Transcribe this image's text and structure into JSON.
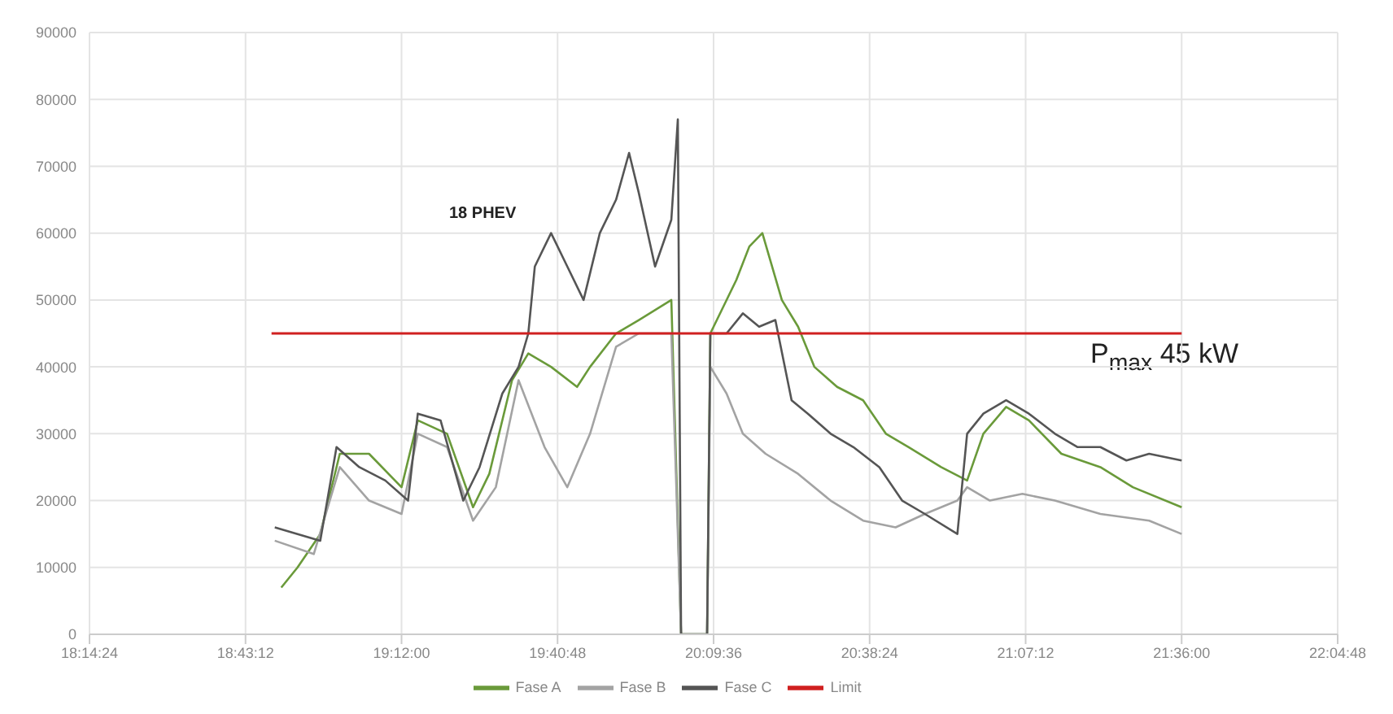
{
  "chart_data": {
    "type": "line",
    "xlim": [
      18.24,
      22.08
    ],
    "xticks": [
      {
        "value": 18.24,
        "label": "18:14:24"
      },
      {
        "value": 18.72,
        "label": "18:43:12"
      },
      {
        "value": 19.2,
        "label": "19:12:00"
      },
      {
        "value": 19.68,
        "label": "19:40:48"
      },
      {
        "value": 20.16,
        "label": "20:09:36"
      },
      {
        "value": 20.64,
        "label": "20:38:24"
      },
      {
        "value": 21.12,
        "label": "21:07:12"
      },
      {
        "value": 21.6,
        "label": "21:36:00"
      },
      {
        "value": 22.08,
        "label": "22:04:48"
      }
    ],
    "ylim": [
      0,
      90000
    ],
    "yticks": [
      0,
      10000,
      20000,
      30000,
      40000,
      50000,
      60000,
      70000,
      80000,
      90000
    ],
    "grid": true,
    "legend": "bottom",
    "marker": "none",
    "line_style": "solid",
    "annotations": [
      "18 PHEV",
      "P$_{max}$ 45 kW"
    ],
    "series": [
      {
        "name": "Fase A",
        "color": "#6a9a3a",
        "x": [
          18.83,
          18.88,
          18.95,
          19.01,
          19.1,
          19.2,
          19.25,
          19.34,
          19.42,
          19.47,
          19.54,
          19.59,
          19.66,
          19.74,
          19.78,
          19.86,
          19.93,
          20.03,
          20.06,
          20.14,
          20.15,
          20.23,
          20.27,
          20.31,
          20.37,
          20.42,
          20.47,
          20.54,
          20.62,
          20.69,
          20.76,
          20.86,
          20.94,
          20.99,
          21.06,
          21.13,
          21.23,
          21.35,
          21.45,
          21.6
        ],
        "values": [
          7000,
          10000,
          15000,
          27000,
          27000,
          22000,
          32000,
          30000,
          19000,
          24000,
          38000,
          42000,
          40000,
          37000,
          40000,
          45000,
          47000,
          50000,
          0,
          0,
          45000,
          53000,
          58000,
          60000,
          50000,
          46000,
          40000,
          37000,
          35000,
          30000,
          28000,
          25000,
          23000,
          30000,
          34000,
          32000,
          27000,
          25000,
          22000,
          19000
        ]
      },
      {
        "name": "Fase B",
        "color": "#a3a3a3",
        "x": [
          18.81,
          18.93,
          19.01,
          19.1,
          19.2,
          19.25,
          19.34,
          19.42,
          19.49,
          19.56,
          19.64,
          19.71,
          19.78,
          19.86,
          19.93,
          20.03,
          20.06,
          20.14,
          20.15,
          20.2,
          20.25,
          20.32,
          20.42,
          20.52,
          20.62,
          20.72,
          20.81,
          20.91,
          20.94,
          21.01,
          21.11,
          21.21,
          21.35,
          21.5,
          21.6
        ],
        "values": [
          14000,
          12000,
          25000,
          20000,
          18000,
          30000,
          28000,
          17000,
          22000,
          38000,
          28000,
          22000,
          30000,
          43000,
          45000,
          45000,
          0,
          0,
          40000,
          36000,
          30000,
          27000,
          24000,
          20000,
          17000,
          16000,
          18000,
          20000,
          22000,
          20000,
          21000,
          20000,
          18000,
          17000,
          15000
        ]
      },
      {
        "name": "Fase C",
        "color": "#555555",
        "x": [
          18.81,
          18.88,
          18.95,
          19.0,
          19.07,
          19.15,
          19.22,
          19.25,
          19.32,
          19.39,
          19.44,
          19.51,
          19.56,
          19.59,
          19.61,
          19.66,
          19.71,
          19.76,
          19.81,
          19.86,
          19.9,
          19.93,
          19.98,
          20.03,
          20.05,
          20.06,
          20.14,
          20.15,
          20.2,
          20.25,
          20.3,
          20.35,
          20.4,
          20.45,
          20.52,
          20.59,
          20.67,
          20.74,
          20.81,
          20.91,
          20.94,
          20.99,
          21.06,
          21.13,
          21.21,
          21.28,
          21.35,
          21.43,
          21.5,
          21.6
        ],
        "values": [
          16000,
          15000,
          14000,
          28000,
          25000,
          23000,
          20000,
          33000,
          32000,
          20000,
          25000,
          36000,
          40000,
          45000,
          55000,
          60000,
          55000,
          50000,
          60000,
          65000,
          72000,
          66000,
          55000,
          62000,
          77000,
          0,
          0,
          45000,
          45000,
          48000,
          46000,
          47000,
          35000,
          33000,
          30000,
          28000,
          25000,
          20000,
          18000,
          15000,
          30000,
          33000,
          35000,
          33000,
          30000,
          28000,
          28000,
          26000,
          27000,
          26000
        ]
      },
      {
        "name": "Limit",
        "color": "#d02020",
        "x": [
          18.8,
          21.6
        ],
        "values": [
          45000,
          45000
        ]
      }
    ]
  }
}
